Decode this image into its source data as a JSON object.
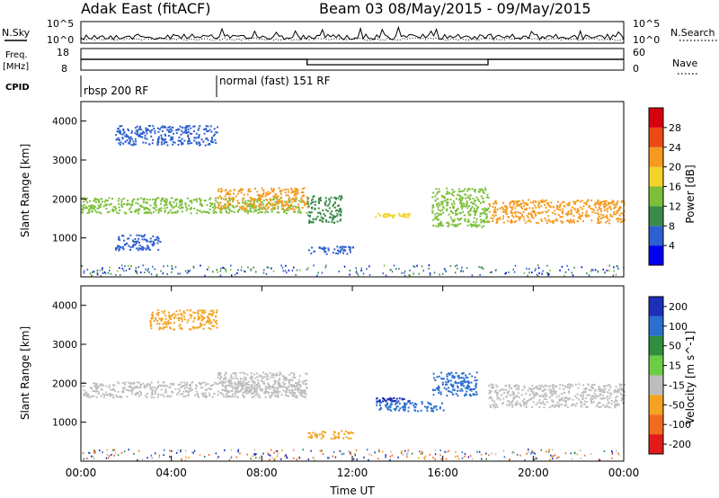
{
  "header": {
    "title": "Adak East (fitACF)",
    "beam": "Beam 03 08/May/2015 - 09/May/2015"
  },
  "nsky_panel": {
    "left_label": "N.Sky",
    "ytick_top": "10^5",
    "ytick_bottom": "10^0",
    "right_label": "N.Search",
    "right_ytick_top": "10^5",
    "right_ytick_bottom": "10^0"
  },
  "freq_panel": {
    "left_label_line1": "Freq.",
    "left_label_line2": "[MHz]",
    "ytick_top": "18",
    "ytick_bottom": "8",
    "right_label": "Nave",
    "right_ytick_top": "60",
    "right_ytick_bottom": "0",
    "freq_value_mhz": 10.5,
    "nave_low_period": {
      "start_hour": 10,
      "end_hour": 18
    }
  },
  "cpid_panel": {
    "label": "CPID",
    "segments": [
      {
        "label": "rbsp 200 RF",
        "start_hour": 0,
        "end_hour": 6
      },
      {
        "label": "normal (fast) 151 RF",
        "start_hour": 6,
        "end_hour": 24
      }
    ]
  },
  "chart_data": [
    {
      "type": "heatmap",
      "name_hint": "power",
      "ylabel": "Slant Range [km]",
      "yticks": [
        "4000",
        "3000",
        "2000",
        "1000"
      ],
      "ylim": [
        0,
        4500
      ],
      "xlim_hours": [
        0,
        24
      ],
      "colorbar": {
        "label": "Power [dB]",
        "ticks": [
          "28",
          "24",
          "20",
          "16",
          "12",
          "8",
          "4"
        ],
        "range": [
          0,
          30
        ],
        "colors": [
          "#0000ee",
          "#2d5fd0",
          "#3a8a4a",
          "#7cbf3a",
          "#f2d32a",
          "#f59a1e",
          "#ec4a14",
          "#d8000e"
        ]
      },
      "echo_regions": [
        {
          "start_hour": 0.0,
          "end_hour": 10.0,
          "range_km": [
            1650,
            2050
          ],
          "power_db": 14
        },
        {
          "start_hour": 6.0,
          "end_hour": 10.0,
          "range_km": [
            1750,
            2300
          ],
          "power_db": 20
        },
        {
          "start_hour": 10.0,
          "end_hour": 11.5,
          "range_km": [
            1400,
            2100
          ],
          "power_db": 10
        },
        {
          "start_hour": 13.0,
          "end_hour": 14.5,
          "range_km": [
            1550,
            1650
          ],
          "power_db": 16
        },
        {
          "start_hour": 15.5,
          "end_hour": 18.0,
          "range_km": [
            1300,
            2300
          ],
          "power_db": 12
        },
        {
          "start_hour": 18.0,
          "end_hour": 24.0,
          "range_km": [
            1400,
            2000
          ],
          "power_db": 20
        },
        {
          "start_hour": 1.5,
          "end_hour": 6.0,
          "range_km": [
            3400,
            3900
          ],
          "power_db": 6
        },
        {
          "start_hour": 1.5,
          "end_hour": 3.5,
          "range_km": [
            700,
            1100
          ],
          "power_db": 7
        },
        {
          "start_hour": 10.0,
          "end_hour": 12.0,
          "range_km": [
            600,
            800
          ],
          "power_db": 6
        }
      ]
    },
    {
      "type": "heatmap",
      "name_hint": "velocity",
      "ylabel": "Slant Range [km]",
      "yticks": [
        "4000",
        "3000",
        "2000",
        "1000"
      ],
      "ylim": [
        0,
        4500
      ],
      "xlim_hours": [
        0,
        24
      ],
      "xticks": [
        "00:00",
        "04:00",
        "08:00",
        "12:00",
        "16:00",
        "20:00",
        "00:00"
      ],
      "xlabel": "Time UT",
      "colorbar": {
        "label": "Velocity [m s^-1]",
        "ticks": [
          "200",
          "100",
          "50",
          "15",
          "-15",
          "-50",
          "-100",
          "-200"
        ],
        "colors": [
          "#1c2fb8",
          "#2b6fd0",
          "#2f8f3e",
          "#6ccc44",
          "#bdbdbd",
          "#f4a21f",
          "#f26a1e",
          "#e41a1a"
        ]
      },
      "echo_regions": [
        {
          "start_hour": 0.0,
          "end_hour": 10.0,
          "range_km": [
            1650,
            2050
          ],
          "velocity": 0
        },
        {
          "start_hour": 6.0,
          "end_hour": 10.0,
          "range_km": [
            1750,
            2300
          ],
          "velocity": 0
        },
        {
          "start_hour": 13.0,
          "end_hour": 14.5,
          "range_km": [
            1550,
            1650
          ],
          "velocity": 180
        },
        {
          "start_hour": 13.0,
          "end_hour": 16.0,
          "range_km": [
            1300,
            1550
          ],
          "velocity": 70
        },
        {
          "start_hour": 15.5,
          "end_hour": 17.5,
          "range_km": [
            1700,
            2300
          ],
          "velocity": 70
        },
        {
          "start_hour": 18.0,
          "end_hour": 24.0,
          "range_km": [
            1400,
            2000
          ],
          "velocity": 0
        },
        {
          "start_hour": 3.0,
          "end_hour": 6.0,
          "range_km": [
            3400,
            3900
          ],
          "velocity": -60
        },
        {
          "start_hour": 10.0,
          "end_hour": 12.0,
          "range_km": [
            600,
            800
          ],
          "velocity": -60
        }
      ]
    }
  ]
}
